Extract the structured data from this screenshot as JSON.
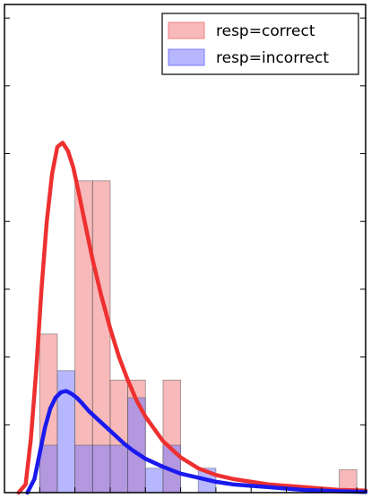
{
  "chart_data": {
    "type": "bar",
    "xlim": [
      0,
      20.5
    ],
    "ylim": [
      0,
      0.36
    ],
    "grid": false,
    "legend_position": "top-right",
    "bin_edges": [
      0,
      1,
      2,
      3,
      4,
      5,
      6,
      7,
      8,
      9,
      10,
      11,
      12,
      13,
      14,
      15,
      16,
      17,
      18,
      19,
      20,
      21
    ],
    "series": [
      {
        "name": "resp=correct",
        "color": "#f08080",
        "values": [
          0,
          0,
          0.117,
          0,
          0.23,
          0.23,
          0.083,
          0.083,
          0,
          0.083,
          0,
          0,
          0,
          0,
          0,
          0,
          0,
          0,
          0,
          0.017,
          0
        ]
      },
      {
        "name": "resp=incorrect",
        "color": "#7b7bff",
        "values": [
          0,
          0,
          0.035,
          0.09,
          0.035,
          0.035,
          0.035,
          0.07,
          0.018,
          0.035,
          0,
          0.018,
          0,
          0,
          0,
          0,
          0,
          0,
          0,
          0,
          0
        ]
      }
    ],
    "curves": [
      {
        "name": "resp=correct",
        "color": "#ee3030",
        "x": [
          0.8,
          1.2,
          1.5,
          1.8,
          2.1,
          2.4,
          2.7,
          3.0,
          3.3,
          3.6,
          3.9,
          4.2,
          4.5,
          5.0,
          5.5,
          6.0,
          6.5,
          7.0,
          7.5,
          8.0,
          9.0,
          10.0,
          11.0,
          12.0,
          13.0,
          14.0,
          15.0,
          16.0,
          17.0,
          18.0,
          19.0,
          20.5
        ],
        "y": [
          0.0,
          0.006,
          0.04,
          0.09,
          0.15,
          0.2,
          0.235,
          0.255,
          0.258,
          0.252,
          0.24,
          0.222,
          0.203,
          0.172,
          0.145,
          0.121,
          0.1,
          0.083,
          0.068,
          0.056,
          0.038,
          0.026,
          0.018,
          0.013,
          0.01,
          0.008,
          0.006,
          0.005,
          0.004,
          0.003,
          0.002,
          0.0015
        ]
      },
      {
        "name": "resp=incorrect",
        "color": "#1a1aee",
        "x": [
          1.3,
          1.7,
          2.0,
          2.3,
          2.6,
          2.9,
          3.2,
          3.5,
          3.8,
          4.1,
          4.4,
          4.8,
          5.3,
          5.8,
          6.3,
          6.8,
          7.3,
          8.0,
          9.0,
          10.0,
          11.0,
          12.0,
          13.0,
          14.0,
          15.0,
          16.0,
          17.0,
          18.0,
          19.0,
          20.5
        ],
        "y": [
          0.0,
          0.01,
          0.029,
          0.048,
          0.062,
          0.07,
          0.074,
          0.075,
          0.073,
          0.07,
          0.066,
          0.06,
          0.054,
          0.048,
          0.042,
          0.036,
          0.031,
          0.025,
          0.019,
          0.014,
          0.011,
          0.008,
          0.006,
          0.005,
          0.004,
          0.003,
          0.002,
          0.0015,
          0.001,
          0.0005
        ]
      }
    ]
  }
}
